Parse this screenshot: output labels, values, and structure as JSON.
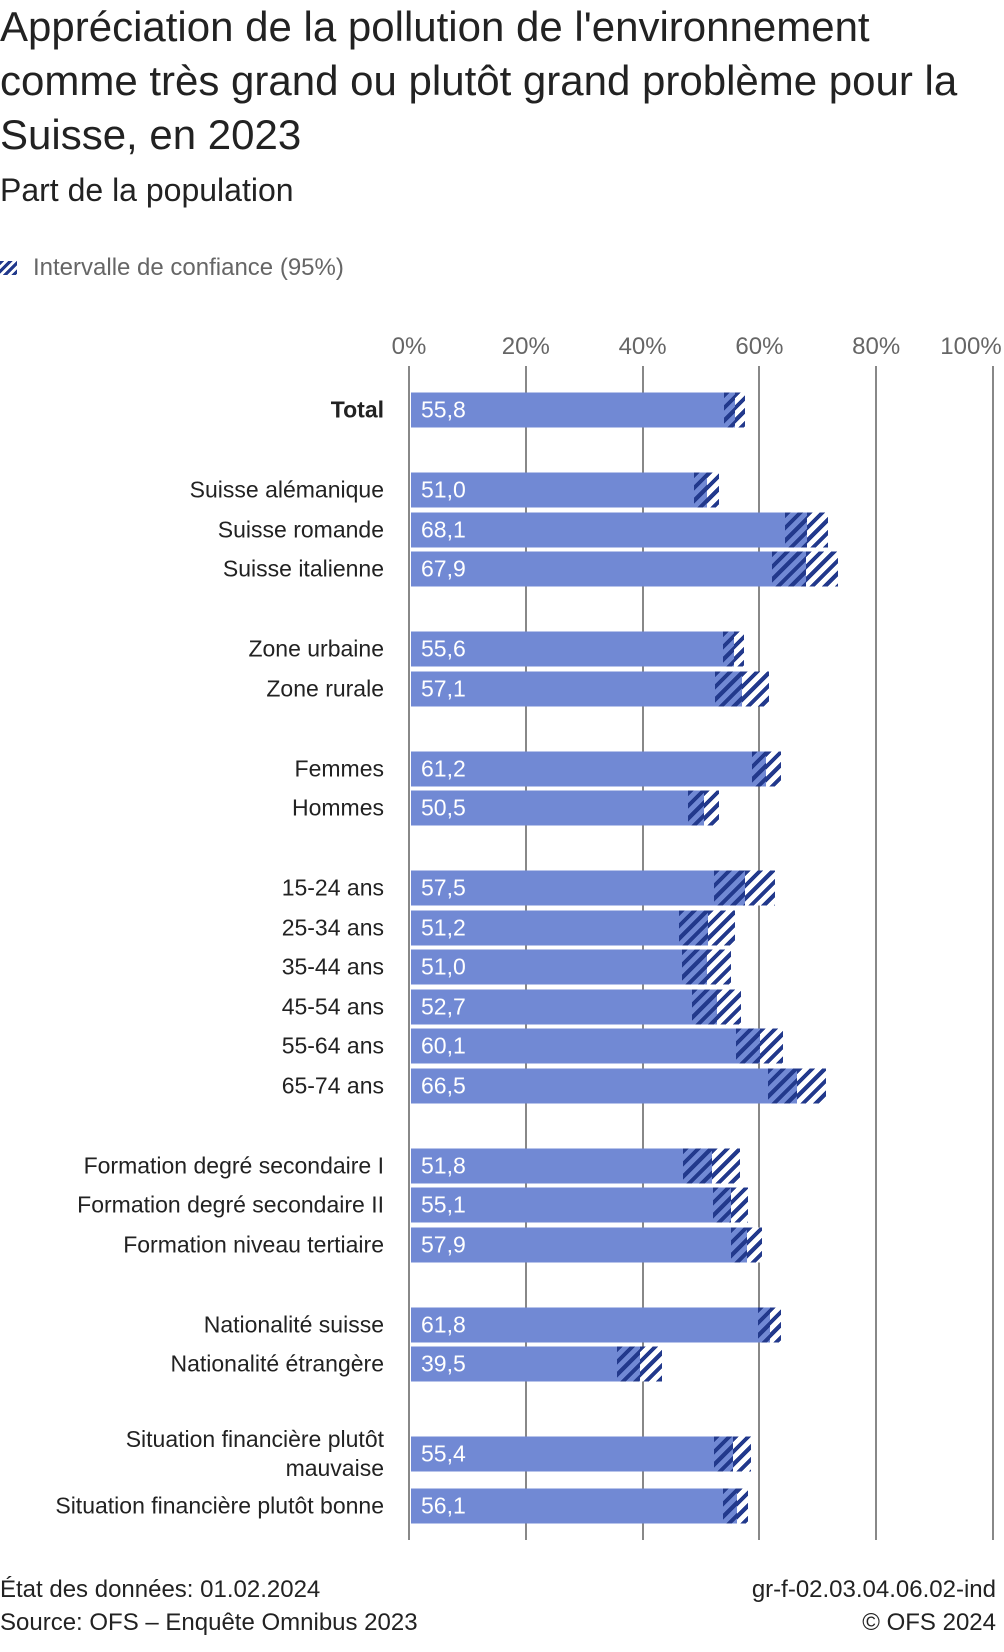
{
  "title": "Appréciation de la pollution de l'environnement comme très grand ou plutôt grand problème pour la Suisse, en 2023",
  "subtitle": "Part de la population",
  "legend": {
    "label": "Intervalle de confiance (95%)"
  },
  "footer": {
    "data_state": "État des données: 01.02.2024",
    "source": "Source: OFS – Enquête Omnibus 2023",
    "code": "gr-f-02.03.04.06.02-ind",
    "copyright": "© OFS 2024"
  },
  "colors": {
    "bar": "#7189d4",
    "ci": "#22398c",
    "grid": "#888888"
  },
  "chart_data": {
    "type": "bar",
    "orientation": "horizontal",
    "title": "Appréciation de la pollution de l'environnement comme très grand ou plutôt grand problème pour la Suisse, en 2023",
    "subtitle": "Part de la population",
    "xlim": [
      0,
      100
    ],
    "x_ticks": [
      "0%",
      "20%",
      "40%",
      "60%",
      "80%",
      "100%"
    ],
    "grid": true,
    "legend": [
      "Intervalle de confiance (95%)"
    ],
    "legend_position": "top-left",
    "categories": [
      {
        "label": "Total",
        "value": "55,8",
        "v": 55.8,
        "ci": [
          54.0,
          57.6
        ],
        "bold": true,
        "group": 0
      },
      {
        "label": "Suisse alémanique",
        "value": "51,0",
        "v": 51.0,
        "ci": [
          48.8,
          53.1
        ],
        "group": 1
      },
      {
        "label": "Suisse romande",
        "value": "68,1",
        "v": 68.1,
        "ci": [
          64.4,
          71.7
        ],
        "group": 1
      },
      {
        "label": "Suisse italienne",
        "value": "67,9",
        "v": 67.9,
        "ci": [
          62.1,
          73.5
        ],
        "group": 1
      },
      {
        "label": "Zone urbaine",
        "value": "55,6",
        "v": 55.6,
        "ci": [
          53.7,
          57.4
        ],
        "group": 2
      },
      {
        "label": "Zone rurale",
        "value": "57,1",
        "v": 57.1,
        "ci": [
          52.4,
          61.7
        ],
        "group": 2
      },
      {
        "label": "Femmes",
        "value": "61,2",
        "v": 61.2,
        "ci": [
          58.7,
          63.7
        ],
        "group": 3
      },
      {
        "label": "Hommes",
        "value": "50,5",
        "v": 50.5,
        "ci": [
          47.8,
          53.1
        ],
        "group": 3
      },
      {
        "label": "15-24 ans",
        "value": "57,5",
        "v": 57.5,
        "ci": [
          52.2,
          62.6
        ],
        "group": 4
      },
      {
        "label": "25-34 ans",
        "value": "51,2",
        "v": 51.2,
        "ci": [
          46.3,
          55.8
        ],
        "group": 4
      },
      {
        "label": "35-44 ans",
        "value": "51,0",
        "v": 51.0,
        "ci": [
          46.7,
          55.1
        ],
        "group": 4
      },
      {
        "label": "45-54 ans",
        "value": "52,7",
        "v": 52.7,
        "ci": [
          48.5,
          56.9
        ],
        "group": 4
      },
      {
        "label": "55-64 ans",
        "value": "60,1",
        "v": 60.1,
        "ci": [
          56.0,
          64.0
        ],
        "group": 4
      },
      {
        "label": "65-74 ans",
        "value": "66,5",
        "v": 66.5,
        "ci": [
          61.5,
          71.4
        ],
        "group": 4
      },
      {
        "label": "Formation degré secondaire I",
        "value": "51,8",
        "v": 51.8,
        "ci": [
          46.9,
          56.7
        ],
        "group": 5
      },
      {
        "label": "Formation degré secondaire II",
        "value": "55,1",
        "v": 55.1,
        "ci": [
          52.1,
          58.0
        ],
        "group": 5
      },
      {
        "label": "Formation niveau tertiaire",
        "value": "57,9",
        "v": 57.9,
        "ci": [
          55.1,
          60.5
        ],
        "group": 5
      },
      {
        "label": "Nationalité suisse",
        "value": "61,8",
        "v": 61.8,
        "ci": [
          59.7,
          63.7
        ],
        "group": 6
      },
      {
        "label": "Nationalité étrangère",
        "value": "39,5",
        "v": 39.5,
        "ci": [
          35.6,
          43.3
        ],
        "group": 6
      },
      {
        "label": "Situation financière plutôt mauvaise",
        "value": "55,4",
        "v": 55.4,
        "ci": [
          52.2,
          58.5
        ],
        "group": 7
      },
      {
        "label": "Situation financière plutôt bonne",
        "value": "56,1",
        "v": 56.1,
        "ci": [
          53.7,
          58.1
        ],
        "group": 7
      }
    ]
  }
}
